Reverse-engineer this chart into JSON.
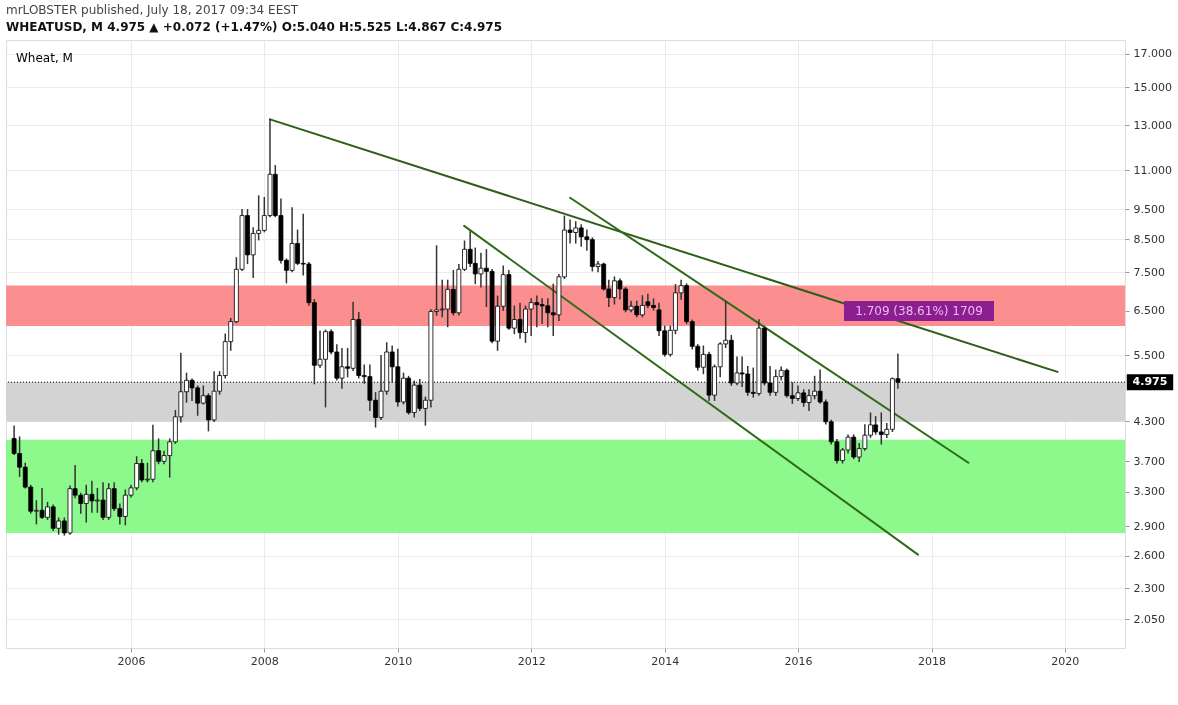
{
  "chart_data": {
    "type": "candlestick",
    "title": "mrLOBSTER published, July 18, 2017 09:34 EEST",
    "subtitle": "WHEATUSD, M  4.975 ▲ +0.072 (+1.47%) O:5.040 H:5.525 L:4.867 C:4.975",
    "x": [
      "2004-04",
      "2004-05",
      "2004-06",
      "2004-07",
      "2004-08",
      "2004-09",
      "2004-10",
      "2004-11",
      "2004-12",
      "2005-01",
      "2005-02",
      "2005-03",
      "2005-04",
      "2005-05",
      "2005-06",
      "2005-07",
      "2005-08",
      "2005-09",
      "2005-10",
      "2005-11",
      "2005-12",
      "2006-01",
      "2006-02",
      "2006-03",
      "2006-04",
      "2006-05",
      "2006-06",
      "2006-07",
      "2006-08",
      "2006-09",
      "2006-10",
      "2006-11",
      "2006-12",
      "2007-01",
      "2007-02",
      "2007-03",
      "2007-04",
      "2007-05",
      "2007-06",
      "2007-07",
      "2007-08",
      "2007-09",
      "2007-10",
      "2007-11",
      "2007-12",
      "2008-01",
      "2008-02",
      "2008-03",
      "2008-04",
      "2008-05",
      "2008-06",
      "2008-07",
      "2008-08",
      "2008-09",
      "2008-10",
      "2008-11",
      "2008-12",
      "2009-01",
      "2009-02",
      "2009-03",
      "2009-04",
      "2009-05",
      "2009-06",
      "2009-07",
      "2009-08",
      "2009-09",
      "2009-10",
      "2009-11",
      "2009-12",
      "2010-01",
      "2010-02",
      "2010-03",
      "2010-04",
      "2010-05",
      "2010-06",
      "2010-07",
      "2010-08",
      "2010-09",
      "2010-10",
      "2010-11",
      "2010-12",
      "2011-01",
      "2011-02",
      "2011-03",
      "2011-04",
      "2011-05",
      "2011-06",
      "2011-07",
      "2011-08",
      "2011-09",
      "2011-10",
      "2011-11",
      "2011-12",
      "2012-01",
      "2012-02",
      "2012-03",
      "2012-04",
      "2012-05",
      "2012-06",
      "2012-07",
      "2012-08",
      "2012-09",
      "2012-10",
      "2012-11",
      "2012-12",
      "2013-01",
      "2013-02",
      "2013-03",
      "2013-04",
      "2013-05",
      "2013-06",
      "2013-07",
      "2013-08",
      "2013-09",
      "2013-10",
      "2013-11",
      "2013-12",
      "2014-01",
      "2014-02",
      "2014-03",
      "2014-04",
      "2014-05",
      "2014-06",
      "2014-07",
      "2014-08",
      "2014-09",
      "2014-10",
      "2014-11",
      "2014-12",
      "2015-01",
      "2015-02",
      "2015-03",
      "2015-04",
      "2015-05",
      "2015-06",
      "2015-07",
      "2015-08",
      "2015-09",
      "2015-10",
      "2015-11",
      "2015-12",
      "2016-01",
      "2016-02",
      "2016-03",
      "2016-04",
      "2016-05",
      "2016-06",
      "2016-07",
      "2016-08",
      "2016-09",
      "2016-10",
      "2016-11",
      "2016-12",
      "2017-01",
      "2017-02",
      "2017-03",
      "2017-04",
      "2017-05",
      "2017-06",
      "2017-07"
    ],
    "ohlc": [
      [
        4.03,
        4.22,
        3.8,
        3.81
      ],
      [
        3.81,
        4.05,
        3.5,
        3.62
      ],
      [
        3.62,
        3.67,
        3.35,
        3.36
      ],
      [
        3.36,
        3.38,
        3.05,
        3.07
      ],
      [
        3.07,
        3.19,
        2.93,
        3.08
      ],
      [
        3.08,
        3.34,
        2.99,
        3.0
      ],
      [
        3.0,
        3.17,
        2.98,
        3.12
      ],
      [
        3.12,
        3.14,
        2.86,
        2.88
      ],
      [
        2.88,
        2.99,
        2.82,
        2.96
      ],
      [
        2.96,
        2.99,
        2.81,
        2.83
      ],
      [
        2.83,
        3.37,
        2.82,
        3.34
      ],
      [
        3.34,
        3.64,
        3.23,
        3.26
      ],
      [
        3.26,
        3.28,
        3.05,
        3.16
      ],
      [
        3.16,
        3.38,
        2.95,
        3.27
      ],
      [
        3.27,
        3.43,
        3.06,
        3.19
      ],
      [
        3.19,
        3.34,
        3.06,
        3.2
      ],
      [
        3.2,
        3.41,
        2.98,
        3.0
      ],
      [
        3.0,
        3.4,
        2.98,
        3.34
      ],
      [
        3.34,
        3.41,
        3.08,
        3.1
      ],
      [
        3.1,
        3.15,
        2.93,
        3.01
      ],
      [
        3.01,
        3.32,
        2.92,
        3.26
      ],
      [
        3.26,
        3.38,
        3.24,
        3.35
      ],
      [
        3.35,
        3.76,
        3.33,
        3.67
      ],
      [
        3.67,
        3.72,
        3.43,
        3.45
      ],
      [
        3.45,
        3.67,
        3.43,
        3.46
      ],
      [
        3.46,
        4.23,
        3.43,
        3.85
      ],
      [
        3.85,
        4.02,
        3.67,
        3.7
      ],
      [
        3.7,
        3.84,
        3.67,
        3.78
      ],
      [
        3.78,
        4.02,
        3.49,
        3.98
      ],
      [
        3.98,
        4.47,
        3.96,
        4.37
      ],
      [
        4.37,
        5.54,
        4.29,
        4.8
      ],
      [
        4.8,
        5.14,
        4.62,
        5.01
      ],
      [
        5.01,
        5.03,
        4.65,
        4.87
      ],
      [
        4.87,
        4.9,
        4.4,
        4.6
      ],
      [
        4.6,
        4.9,
        4.59,
        4.73
      ],
      [
        4.73,
        4.76,
        4.15,
        4.32
      ],
      [
        4.32,
        5.17,
        4.3,
        4.81
      ],
      [
        4.81,
        5.17,
        4.76,
        5.1
      ],
      [
        5.1,
        5.95,
        5.06,
        5.79
      ],
      [
        5.79,
        6.31,
        5.61,
        6.24
      ],
      [
        6.24,
        7.92,
        6.22,
        7.59
      ],
      [
        7.59,
        9.48,
        7.56,
        9.28
      ],
      [
        9.28,
        9.48,
        7.76,
        8.01
      ],
      [
        8.01,
        8.86,
        7.37,
        8.68
      ],
      [
        8.68,
        9.98,
        8.48,
        8.78
      ],
      [
        8.78,
        9.92,
        8.74,
        9.28
      ],
      [
        9.28,
        13.3,
        9.25,
        10.83
      ],
      [
        10.83,
        11.18,
        9.25,
        9.28
      ],
      [
        9.28,
        9.86,
        7.78,
        7.85
      ],
      [
        7.85,
        7.88,
        7.22,
        7.56
      ],
      [
        7.56,
        9.55,
        7.53,
        8.36
      ],
      [
        8.36,
        8.78,
        7.73,
        7.76
      ],
      [
        7.76,
        9.32,
        7.44,
        7.74
      ],
      [
        7.74,
        7.78,
        6.64,
        6.7
      ],
      [
        6.7,
        6.77,
        4.95,
        5.3
      ],
      [
        5.3,
        6.02,
        5.26,
        5.42
      ],
      [
        5.42,
        6.04,
        4.54,
        6.01
      ],
      [
        6.01,
        6.05,
        5.54,
        5.57
      ],
      [
        5.57,
        5.72,
        5.02,
        5.05
      ],
      [
        5.05,
        5.64,
        4.87,
        5.27
      ],
      [
        5.27,
        5.64,
        5.08,
        5.24
      ],
      [
        5.24,
        6.7,
        5.2,
        6.29
      ],
      [
        6.29,
        6.45,
        5.06,
        5.1
      ],
      [
        5.1,
        5.3,
        4.96,
        5.08
      ],
      [
        5.08,
        5.3,
        4.48,
        4.65
      ],
      [
        4.65,
        4.78,
        4.21,
        4.36
      ],
      [
        4.36,
        5.49,
        4.33,
        4.81
      ],
      [
        4.81,
        5.76,
        4.76,
        5.57
      ],
      [
        5.57,
        5.69,
        4.98,
        5.27
      ],
      [
        5.27,
        5.62,
        4.55,
        4.62
      ],
      [
        4.62,
        5.14,
        4.59,
        5.05
      ],
      [
        5.05,
        5.08,
        4.42,
        4.44
      ],
      [
        4.44,
        4.99,
        4.37,
        4.92
      ],
      [
        4.92,
        5.02,
        4.48,
        4.51
      ],
      [
        4.51,
        4.7,
        4.24,
        4.65
      ],
      [
        4.65,
        6.52,
        4.54,
        6.48
      ],
      [
        6.48,
        8.28,
        6.4,
        6.52
      ],
      [
        6.52,
        7.28,
        6.36,
        6.54
      ],
      [
        6.54,
        7.28,
        6.13,
        7.04
      ],
      [
        7.04,
        7.55,
        6.4,
        6.45
      ],
      [
        6.45,
        7.72,
        6.4,
        7.59
      ],
      [
        7.59,
        8.43,
        7.56,
        8.18
      ],
      [
        8.18,
        8.73,
        7.68,
        7.76
      ],
      [
        7.76,
        8.21,
        7.2,
        7.46
      ],
      [
        7.46,
        8.05,
        7.11,
        7.62
      ],
      [
        7.62,
        8.16,
        6.61,
        7.53
      ],
      [
        7.53,
        7.58,
        5.77,
        5.8
      ],
      [
        5.8,
        6.86,
        5.61,
        6.61
      ],
      [
        6.61,
        7.68,
        6.52,
        7.44
      ],
      [
        7.44,
        7.55,
        6.07,
        6.09
      ],
      [
        6.09,
        6.61,
        5.97,
        6.29
      ],
      [
        6.29,
        6.68,
        5.87,
        5.99
      ],
      [
        5.99,
        6.61,
        5.78,
        6.54
      ],
      [
        6.54,
        6.79,
        5.93,
        6.7
      ],
      [
        6.7,
        6.86,
        6.13,
        6.65
      ],
      [
        6.65,
        6.79,
        6.2,
        6.62
      ],
      [
        6.62,
        6.79,
        6.13,
        6.45
      ],
      [
        6.45,
        7.17,
        5.93,
        6.4
      ],
      [
        6.4,
        7.44,
        6.27,
        7.38
      ],
      [
        7.38,
        9.25,
        7.34,
        8.79
      ],
      [
        8.79,
        9.12,
        8.38,
        8.71
      ],
      [
        8.71,
        9.06,
        8.38,
        8.86
      ],
      [
        8.86,
        8.96,
        8.28,
        8.57
      ],
      [
        8.57,
        8.78,
        8.16,
        8.48
      ],
      [
        8.48,
        8.53,
        7.55,
        7.67
      ],
      [
        7.67,
        7.81,
        7.53,
        7.74
      ],
      [
        7.74,
        7.76,
        7.03,
        7.05
      ],
      [
        7.05,
        7.28,
        6.61,
        6.83
      ],
      [
        6.83,
        7.37,
        6.67,
        7.27
      ],
      [
        7.27,
        7.31,
        6.8,
        7.05
      ],
      [
        7.05,
        7.08,
        6.48,
        6.52
      ],
      [
        6.52,
        6.73,
        6.48,
        6.61
      ],
      [
        6.61,
        6.73,
        6.36,
        6.4
      ],
      [
        6.4,
        6.87,
        6.36,
        6.63
      ],
      [
        6.72,
        6.91,
        6.58,
        6.63
      ],
      [
        6.63,
        6.79,
        6.52,
        6.58
      ],
      [
        6.52,
        6.68,
        5.93,
        6.03
      ],
      [
        6.03,
        6.13,
        5.49,
        5.52
      ],
      [
        5.52,
        6.13,
        5.49,
        6.04
      ],
      [
        6.04,
        7.16,
        5.97,
        6.95
      ],
      [
        6.95,
        7.28,
        6.79,
        7.14
      ],
      [
        7.14,
        7.18,
        6.2,
        6.24
      ],
      [
        6.24,
        6.27,
        5.64,
        5.69
      ],
      [
        5.69,
        5.72,
        5.21,
        5.26
      ],
      [
        5.26,
        5.69,
        5.14,
        5.52
      ],
      [
        5.52,
        5.56,
        4.65,
        4.74
      ],
      [
        4.74,
        5.3,
        4.65,
        5.27
      ],
      [
        5.27,
        5.76,
        5.08,
        5.74
      ],
      [
        5.74,
        6.71,
        5.67,
        5.82
      ],
      [
        5.82,
        5.92,
        4.92,
        4.96
      ],
      [
        4.96,
        5.46,
        4.93,
        5.15
      ],
      [
        5.15,
        5.46,
        4.9,
        5.13
      ],
      [
        5.13,
        5.27,
        4.74,
        4.79
      ],
      [
        4.79,
        5.24,
        4.71,
        4.77
      ],
      [
        4.77,
        6.28,
        4.74,
        6.09
      ],
      [
        6.09,
        6.13,
        4.93,
        4.96
      ],
      [
        4.96,
        5.27,
        4.74,
        4.79
      ],
      [
        4.79,
        5.2,
        4.74,
        5.08
      ],
      [
        5.08,
        5.26,
        5.02,
        5.2
      ],
      [
        5.2,
        5.22,
        4.71,
        4.73
      ],
      [
        4.73,
        4.96,
        4.6,
        4.68
      ],
      [
        4.68,
        4.9,
        4.65,
        4.78
      ],
      [
        4.78,
        4.83,
        4.55,
        4.61
      ],
      [
        4.61,
        4.83,
        4.48,
        4.73
      ],
      [
        4.73,
        5.08,
        4.68,
        4.81
      ],
      [
        4.81,
        5.2,
        4.6,
        4.62
      ],
      [
        4.62,
        4.65,
        4.26,
        4.29
      ],
      [
        4.29,
        4.31,
        3.95,
        3.98
      ],
      [
        3.98,
        4.01,
        3.68,
        3.71
      ],
      [
        3.71,
        3.88,
        3.68,
        3.86
      ],
      [
        3.86,
        4.08,
        3.82,
        4.05
      ],
      [
        4.05,
        4.08,
        3.74,
        3.76
      ],
      [
        3.76,
        3.95,
        3.7,
        3.88
      ],
      [
        3.88,
        4.24,
        3.86,
        4.08
      ],
      [
        4.08,
        4.43,
        4.05,
        4.24
      ],
      [
        4.24,
        4.37,
        4.1,
        4.13
      ],
      [
        4.13,
        4.43,
        3.95,
        4.09
      ],
      [
        4.09,
        4.26,
        4.05,
        4.17
      ],
      [
        4.17,
        5.05,
        4.14,
        5.04
      ],
      [
        5.04,
        5.525,
        4.867,
        4.975
      ]
    ],
    "series": [
      {
        "type": "line",
        "x": [
          "2008-02-01",
          "2019-11-22"
        ],
        "values": [
          13.3,
          5.17
        ],
        "color": "#2f5e1a"
      },
      {
        "type": "line",
        "x": [
          "2012-08-01",
          "2018-07-22"
        ],
        "values": [
          9.92,
          3.68
        ],
        "color": "#2e6b17"
      },
      {
        "type": "line",
        "x": [
          "2010-12-30",
          "2017-10-19"
        ],
        "values": [
          8.93,
          2.61
        ],
        "color": "#2e6b17"
      }
    ],
    "bands": [
      {
        "axis": "y",
        "from": 6.14,
        "to": 7.14,
        "color": "#fb8f8f"
      },
      {
        "axis": "y",
        "from": 4.29,
        "to": 4.98,
        "color": "#d3d3d3"
      },
      {
        "axis": "y",
        "from": 2.83,
        "to": 4.01,
        "color": "#8df98d"
      }
    ],
    "ref_lines": [
      {
        "axis": "y",
        "value": 4.975,
        "label": "4.975",
        "color": "#000000",
        "line_style": "dotted"
      }
    ],
    "annotations": [
      "Wheat, M",
      "1.709 (38.61%) 1709"
    ],
    "xlim": [
      "2004-03-15",
      "2020-10-29"
    ],
    "ylim": [
      1.84,
      17.9
    ],
    "xticks": [
      "2006",
      "2008",
      "2010",
      "2012",
      "2014",
      "2016",
      "2018",
      "2020"
    ],
    "yticks": [
      {
        "value": 2.05,
        "label": "2.050"
      },
      {
        "value": 2.3,
        "label": "2.300"
      },
      {
        "value": 2.6,
        "label": "2.600"
      },
      {
        "value": 2.9,
        "label": "2.900"
      },
      {
        "value": 3.3,
        "label": "3.300"
      },
      {
        "value": 3.7,
        "label": "3.700"
      },
      {
        "value": 4.3,
        "label": "4.300"
      },
      {
        "value": 5.5,
        "label": "5.500"
      },
      {
        "value": 6.5,
        "label": "6.500"
      },
      {
        "value": 7.5,
        "label": "7.500"
      },
      {
        "value": 8.5,
        "label": "8.500"
      },
      {
        "value": 9.5,
        "label": "9.500"
      },
      {
        "value": 11,
        "label": "11.000"
      },
      {
        "value": 13,
        "label": "13.000"
      },
      {
        "value": 15,
        "label": "15.000"
      },
      {
        "value": 17,
        "label": "17.000"
      }
    ],
    "log": true,
    "grid": true
  }
}
